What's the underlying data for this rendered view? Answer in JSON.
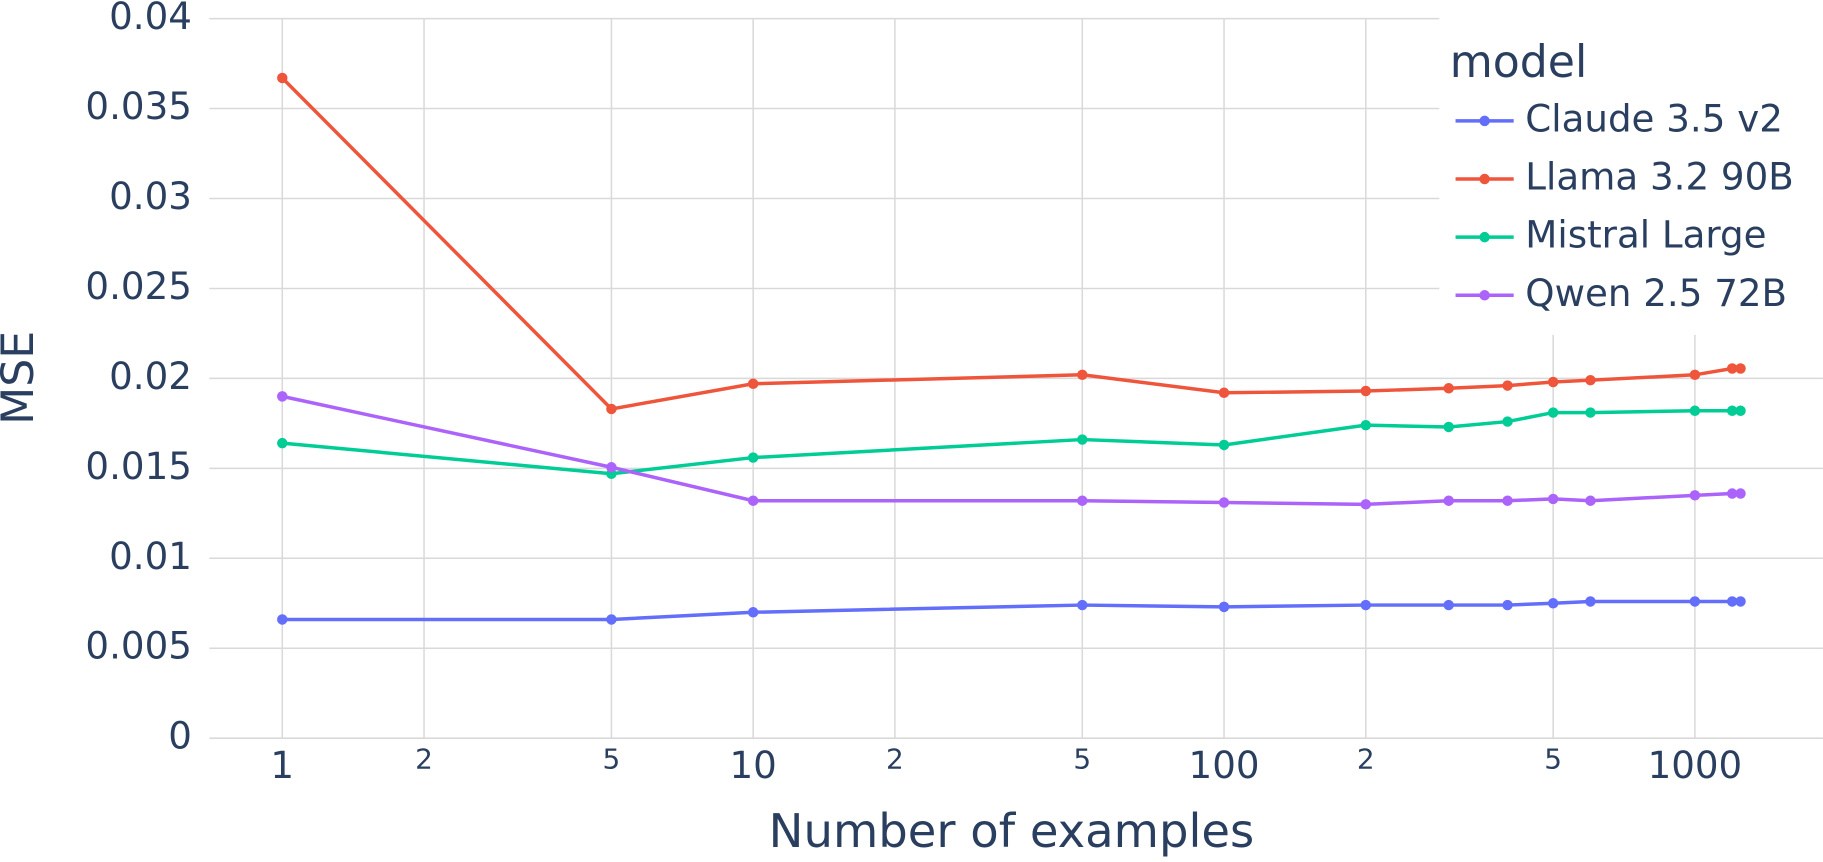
{
  "chart_data": {
    "type": "line",
    "xlabel": "Number of examples",
    "ylabel": "MSE",
    "x": [
      1,
      5,
      10,
      50,
      100,
      200,
      300,
      400,
      500,
      600,
      1000,
      1200,
      1250
    ],
    "series": [
      {
        "name": "Claude 3.5 v2",
        "color": "#636efa",
        "values": [
          0.0066,
          0.0066,
          0.007,
          0.0074,
          0.0073,
          0.0074,
          0.0074,
          0.0074,
          0.0075,
          0.0076,
          0.0076,
          0.0076,
          0.0076
        ]
      },
      {
        "name": "Llama 3.2 90B",
        "color": "#ef553b",
        "values": [
          0.0367,
          0.0183,
          0.0197,
          0.0202,
          0.0192,
          0.0193,
          0.01945,
          0.0196,
          0.0198,
          0.0199,
          0.0202,
          0.02055,
          0.02055
        ]
      },
      {
        "name": "Mistral Large",
        "color": "#00cc96",
        "values": [
          0.0164,
          0.0147,
          0.0156,
          0.0166,
          0.0163,
          0.0174,
          0.0173,
          0.0176,
          0.0181,
          0.0181,
          0.0182,
          0.0182,
          0.0182
        ]
      },
      {
        "name": "Qwen 2.5 72B",
        "color": "#ab63fa",
        "values": [
          0.019,
          0.01506,
          0.0132,
          0.0132,
          0.0131,
          0.013,
          0.0132,
          0.0132,
          0.0133,
          0.0132,
          0.0135,
          0.0136,
          0.0136
        ]
      }
    ],
    "legend_title": "model",
    "legend": "top-right",
    "xscale": "log",
    "xlim": [
      0.7,
      1870
    ],
    "xticks": [
      1,
      {
        "value": 2,
        "label": "2"
      },
      5,
      10,
      {
        "value": 20,
        "label": "2"
      },
      {
        "value": 50,
        "label": "5"
      },
      100,
      {
        "value": 200,
        "label": "2"
      },
      {
        "value": 500,
        "label": "5"
      },
      1000
    ],
    "ylim": [
      0,
      0.04
    ],
    "yticks": [
      0,
      0.005,
      0.01,
      0.015,
      0.02,
      0.025,
      0.03,
      0.035,
      0.04
    ],
    "grid": true
  }
}
